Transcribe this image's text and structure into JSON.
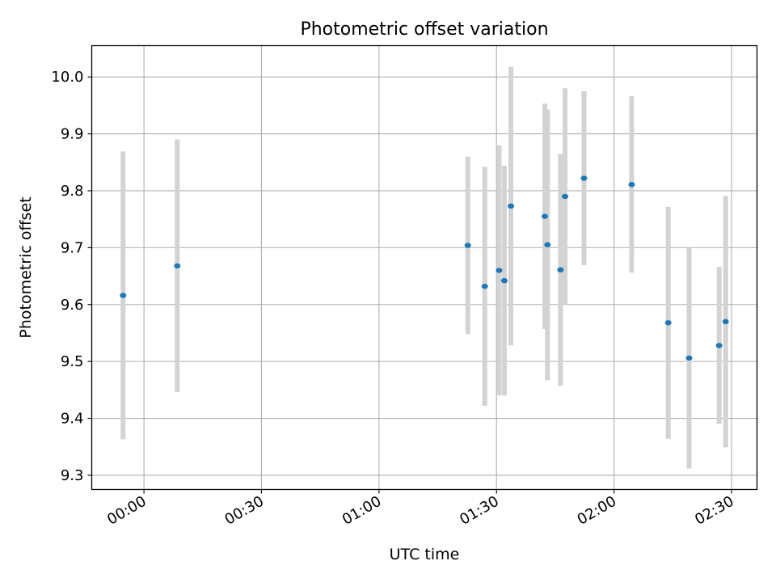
{
  "chart_data": {
    "type": "scatter",
    "title": "Photometric offset variation",
    "xlabel": "UTC time",
    "ylabel": "Photometric offset",
    "grid": true,
    "xlim": [
      "23:46:40",
      "02:36:30"
    ],
    "ylim": [
      9.275,
      10.055
    ],
    "x_ticks": [
      "00:00",
      "00:30",
      "01:00",
      "01:30",
      "02:00",
      "02:30"
    ],
    "y_ticks": [
      "9.3",
      "9.4",
      "9.5",
      "9.6",
      "9.7",
      "9.8",
      "9.9",
      "10.0"
    ],
    "series": [
      {
        "marker_color": "#1f77b4",
        "errorbar_color": "#d3d3d3",
        "points": [
          {
            "x": "23:54:40",
            "y": 9.616,
            "yerr": 0.253
          },
          {
            "x": "00:08:30",
            "y": 9.668,
            "yerr": 0.222
          },
          {
            "x": "01:22:40",
            "y": 9.704,
            "yerr": 0.156
          },
          {
            "x": "01:27:00",
            "y": 9.632,
            "yerr": 0.21
          },
          {
            "x": "01:30:40",
            "y": 9.66,
            "yerr": 0.22
          },
          {
            "x": "01:32:00",
            "y": 9.642,
            "yerr": 0.202
          },
          {
            "x": "01:33:40",
            "y": 9.773,
            "yerr": 0.245
          },
          {
            "x": "01:42:20",
            "y": 9.755,
            "yerr": 0.198
          },
          {
            "x": "01:43:00",
            "y": 9.705,
            "yerr": 0.238
          },
          {
            "x": "01:46:20",
            "y": 9.661,
            "yerr": 0.204
          },
          {
            "x": "01:47:30",
            "y": 9.79,
            "yerr": 0.19
          },
          {
            "x": "01:52:20",
            "y": 9.822,
            "yerr": 0.153
          },
          {
            "x": "02:04:30",
            "y": 9.811,
            "yerr": 0.155
          },
          {
            "x": "02:13:50",
            "y": 9.568,
            "yerr": 0.204
          },
          {
            "x": "02:19:10",
            "y": 9.506,
            "yerr": 0.194
          },
          {
            "x": "02:26:50",
            "y": 9.528,
            "yerr": 0.138
          },
          {
            "x": "02:28:30",
            "y": 9.57,
            "yerr": 0.221
          }
        ]
      }
    ]
  }
}
